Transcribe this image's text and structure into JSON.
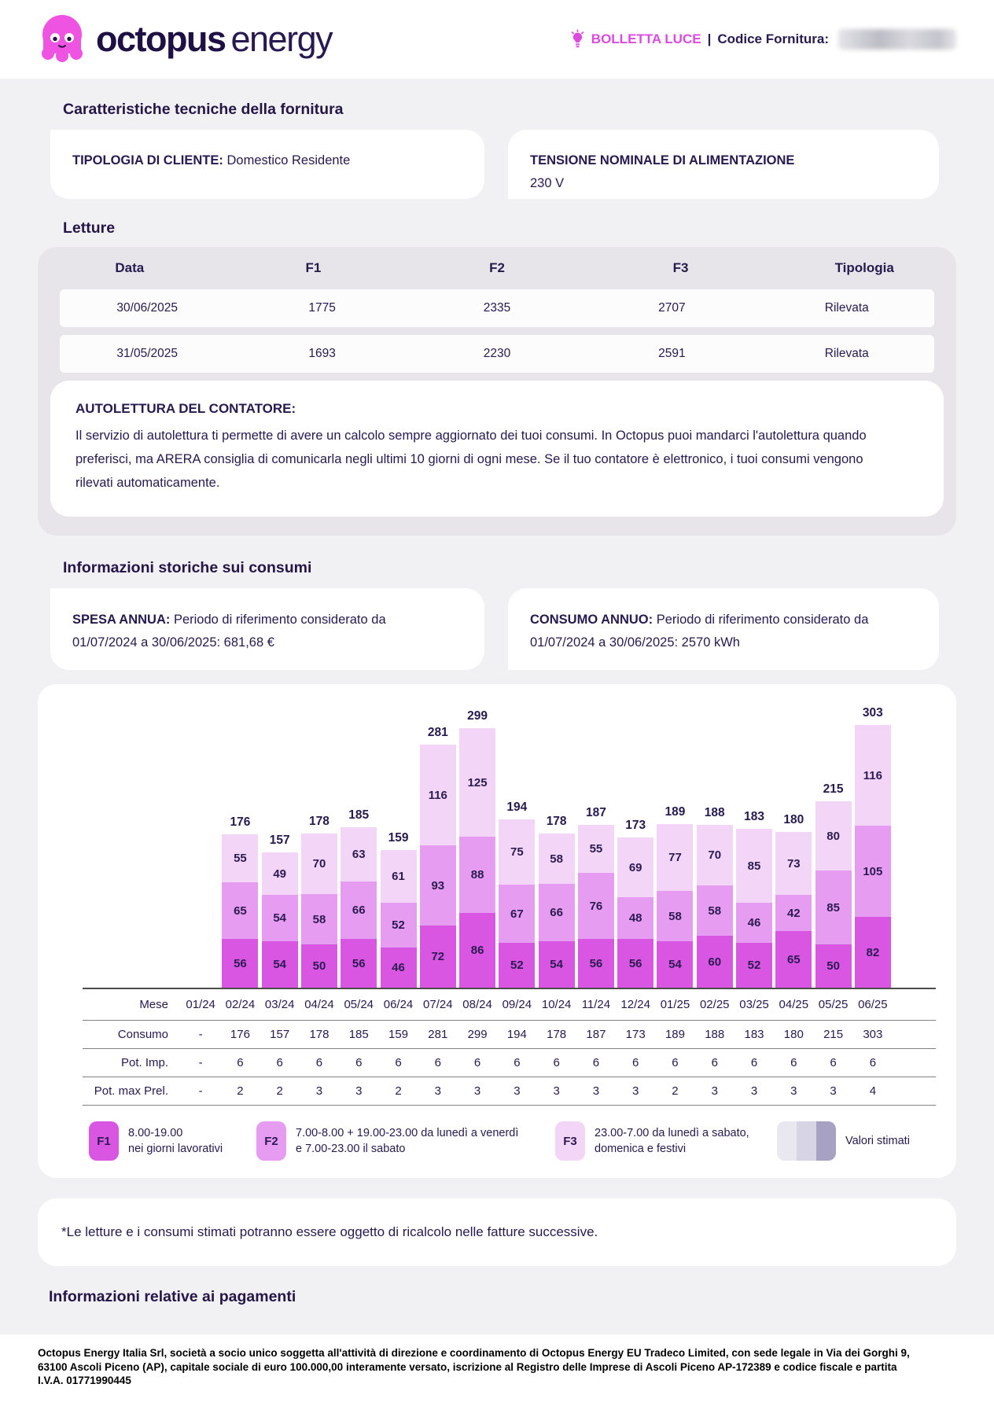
{
  "header": {
    "brand_primary": "octopus",
    "brand_secondary": "energy",
    "doc_type": "BOLLETTA LUCE",
    "divider": "|",
    "supply_code_label": "Codice Fornitura:"
  },
  "tech": {
    "title": "Caratteristiche tecniche della fornitura",
    "client_type_label": "TIPOLOGIA DI CLIENTE:",
    "client_type_value": "Domestico Residente",
    "voltage_label": "TENSIONE NOMINALE DI ALIMENTAZIONE",
    "voltage_value": "230 V"
  },
  "readings": {
    "title": "Letture",
    "columns": [
      "Data",
      "F1",
      "F2",
      "F3",
      "Tipologia"
    ],
    "rows": [
      [
        "30/06/2025",
        "1775",
        "2335",
        "2707",
        "Rilevata"
      ],
      [
        "31/05/2025",
        "1693",
        "2230",
        "2591",
        "Rilevata"
      ]
    ],
    "self_reading_title": "AUTOLETTURA DEL CONTATORE:",
    "self_reading_text": "Il servizio di autolettura ti permette di avere un calcolo sempre aggiornato dei tuoi consumi. In Octopus puoi mandarci l'autolettura quando preferisci, ma ARERA consiglia di comunicarla negli ultimi 10 giorni di ogni mese. Se il tuo contatore è elettronico, i tuoi consumi vengono rilevati automaticamente."
  },
  "history": {
    "title": "Informazioni storiche sui consumi",
    "spend_label": "SPESA ANNUA:",
    "spend_line1": "Periodo di riferimento considerato da",
    "spend_line2": "01/07/2024 a 30/06/2025: 681,68 €",
    "consumption_label": "CONSUMO ANNUO:",
    "consumption_line1": "Periodo di riferimento considerato da",
    "consumption_line2": "01/07/2024 a 30/06/2025: 2570 kWh"
  },
  "chart_data": {
    "type": "bar",
    "stacked": true,
    "unit": "kWh",
    "categories": [
      "01/24",
      "02/24",
      "03/24",
      "04/24",
      "05/24",
      "06/24",
      "07/24",
      "08/24",
      "09/24",
      "10/24",
      "11/24",
      "12/24",
      "01/25",
      "02/25",
      "03/25",
      "04/25",
      "05/25",
      "06/25"
    ],
    "series": [
      {
        "name": "F1",
        "color": "#d856e1",
        "values": [
          null,
          56,
          54,
          50,
          56,
          46,
          72,
          86,
          52,
          54,
          56,
          56,
          54,
          60,
          52,
          65,
          50,
          82
        ]
      },
      {
        "name": "F2",
        "color": "#e69cf0",
        "values": [
          null,
          65,
          54,
          58,
          66,
          52,
          93,
          88,
          67,
          66,
          76,
          48,
          58,
          58,
          46,
          42,
          85,
          105
        ]
      },
      {
        "name": "F3",
        "color": "#f3d5f8",
        "values": [
          null,
          55,
          49,
          70,
          63,
          61,
          116,
          125,
          75,
          58,
          55,
          69,
          77,
          70,
          85,
          73,
          80,
          116
        ]
      }
    ],
    "totals": [
      null,
      176,
      157,
      178,
      185,
      159,
      281,
      299,
      194,
      178,
      187,
      173,
      189,
      188,
      183,
      180,
      215,
      303
    ],
    "table_rows": [
      {
        "label": "Mese",
        "values": [
          "01/24",
          "02/24",
          "03/24",
          "04/24",
          "05/24",
          "06/24",
          "07/24",
          "08/24",
          "09/24",
          "10/24",
          "11/24",
          "12/24",
          "01/25",
          "02/25",
          "03/25",
          "04/25",
          "05/25",
          "06/25"
        ]
      },
      {
        "label": "Consumo",
        "values": [
          "-",
          "176",
          "157",
          "178",
          "185",
          "159",
          "281",
          "299",
          "194",
          "178",
          "187",
          "173",
          "189",
          "188",
          "183",
          "180",
          "215",
          "303"
        ]
      },
      {
        "label": "Pot. Imp.",
        "values": [
          "-",
          "6",
          "6",
          "6",
          "6",
          "6",
          "6",
          "6",
          "6",
          "6",
          "6",
          "6",
          "6",
          "6",
          "6",
          "6",
          "6",
          "6"
        ]
      },
      {
        "label": "Pot. max Prel.",
        "values": [
          "-",
          "2",
          "2",
          "3",
          "3",
          "2",
          "3",
          "3",
          "3",
          "3",
          "3",
          "3",
          "2",
          "3",
          "3",
          "3",
          "3",
          "4"
        ]
      }
    ],
    "legend": [
      {
        "key": "F1",
        "color": "#d856e1",
        "line1": "8.00-19.00",
        "line2": "nei giorni lavorativi"
      },
      {
        "key": "F2",
        "color": "#e69cf0",
        "line1": "7.00-8.00 + 19.00-23.00 da lunedì a venerdì",
        "line2": "e 7.00-23.00 il sabato"
      },
      {
        "key": "F3",
        "color": "#f3d5f8",
        "line1": "23.00-7.00 da lunedì a sabato,",
        "line2": "domenica e festivi"
      }
    ],
    "estimated": {
      "label": "Valori stimati",
      "colors": [
        "#e9e7f0",
        "#d7d4e4",
        "#a7a1c3"
      ]
    },
    "title": "",
    "xlabel": "Mese",
    "ylabel": ""
  },
  "note": "*Le letture e i consumi stimati potranno essere oggetto di ricalcolo nelle fatture successive.",
  "payments_title": "Informazioni relative ai pagamenti",
  "footer": {
    "lines": [
      "Octopus Energy Italia Srl, società a socio unico soggetta all'attività di direzione e coordinamento di Octopus Energy EU Tradeco Limited, con sede legale in Via dei Gorghi 9,",
      "63100 Ascoli Piceno (AP), capitale sociale di euro 100.000,00 interamente versato, iscrizione al Registro delle Imprese di Ascoli Piceno AP-172389 e codice fiscale e partita",
      "I.V.A. 01771990445"
    ]
  }
}
